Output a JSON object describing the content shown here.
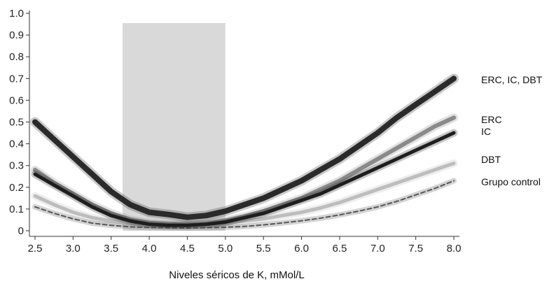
{
  "chart_data": {
    "type": "line",
    "title": "",
    "xlabel": "Niveles séricos de K, mMol/L",
    "ylabel": "",
    "xlim": [
      2.5,
      8.0
    ],
    "ylim": [
      0.0,
      1.0
    ],
    "x_ticks": [
      "2.5",
      "3.0",
      "3.5",
      "4.0",
      "4.5",
      "5.0",
      "5.5",
      "6.0",
      "6.5",
      "7.0",
      "7.5",
      "8.0"
    ],
    "y_ticks": [
      "0",
      "0.1",
      "0.2",
      "0.3",
      "0.4",
      "0.5",
      "0.6",
      "0.7",
      "0.8",
      "0.9",
      "1.0"
    ],
    "shaded_range": {
      "x": [
        3.65,
        5.0
      ],
      "y": [
        0.0,
        0.955
      ],
      "color": "#d9d9d9"
    },
    "grid": false,
    "legend_placement": "right",
    "x": [
      2.5,
      2.75,
      3.0,
      3.25,
      3.5,
      3.75,
      4.0,
      4.25,
      4.5,
      4.75,
      5.0,
      5.25,
      5.5,
      5.75,
      6.0,
      6.25,
      6.5,
      6.75,
      7.0,
      7.25,
      7.5,
      7.75,
      8.0
    ],
    "series": [
      {
        "name": "ERC, IC, DBT",
        "color": "#2a2a2a",
        "width": 8,
        "dash": false,
        "values": [
          0.5,
          0.42,
          0.34,
          0.26,
          0.18,
          0.12,
          0.085,
          0.075,
          0.062,
          0.07,
          0.09,
          0.12,
          0.15,
          0.19,
          0.23,
          0.28,
          0.33,
          0.39,
          0.45,
          0.52,
          0.58,
          0.64,
          0.7
        ]
      },
      {
        "name": "ERC",
        "color": "#8a8a8a",
        "width": 6,
        "dash": false,
        "values": [
          0.28,
          0.22,
          0.17,
          0.12,
          0.08,
          0.05,
          0.035,
          0.03,
          0.028,
          0.032,
          0.045,
          0.065,
          0.09,
          0.12,
          0.15,
          0.19,
          0.23,
          0.28,
          0.33,
          0.38,
          0.43,
          0.48,
          0.52
        ]
      },
      {
        "name": "IC",
        "color": "#1e1e1e",
        "width": 5,
        "dash": false,
        "values": [
          0.26,
          0.21,
          0.16,
          0.11,
          0.07,
          0.045,
          0.03,
          0.025,
          0.025,
          0.03,
          0.04,
          0.06,
          0.08,
          0.11,
          0.14,
          0.17,
          0.21,
          0.25,
          0.29,
          0.33,
          0.37,
          0.41,
          0.45
        ]
      },
      {
        "name": "DBT",
        "color": "#bdbdbd",
        "width": 5,
        "dash": false,
        "values": [
          0.16,
          0.12,
          0.085,
          0.06,
          0.045,
          0.035,
          0.03,
          0.028,
          0.027,
          0.03,
          0.035,
          0.045,
          0.055,
          0.07,
          0.085,
          0.105,
          0.13,
          0.16,
          0.19,
          0.22,
          0.25,
          0.28,
          0.31
        ]
      },
      {
        "name": "Grupo control",
        "color": "#555555",
        "width": 2,
        "dash": true,
        "values": [
          0.11,
          0.08,
          0.055,
          0.035,
          0.025,
          0.018,
          0.015,
          0.014,
          0.013,
          0.014,
          0.016,
          0.02,
          0.027,
          0.036,
          0.046,
          0.058,
          0.073,
          0.09,
          0.11,
          0.135,
          0.165,
          0.195,
          0.23
        ]
      }
    ],
    "legend": [
      "ERC, IC, DBT",
      "ERC",
      "IC",
      "DBT",
      "Grupo control"
    ]
  }
}
